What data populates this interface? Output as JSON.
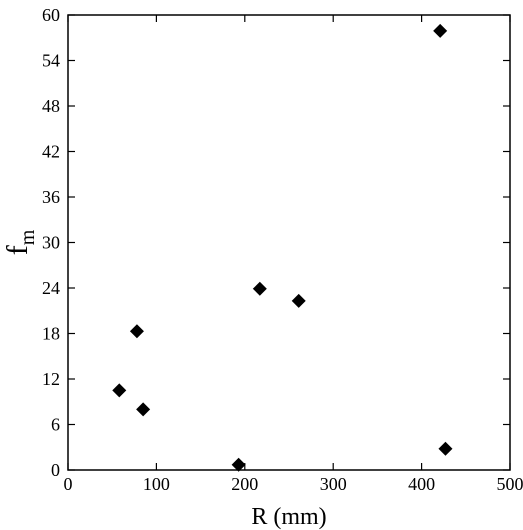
{
  "chart_data": {
    "type": "scatter",
    "title": "",
    "xlabel": "R (mm)",
    "ylabel_main": "f",
    "ylabel_sub": "m",
    "xlim": [
      0,
      500
    ],
    "ylim": [
      0,
      60
    ],
    "xticks": [
      0,
      100,
      200,
      300,
      400,
      500
    ],
    "yticks": [
      0,
      6,
      12,
      18,
      24,
      30,
      36,
      42,
      48,
      54,
      60
    ],
    "xtick_labels": [
      "0",
      "100",
      "200",
      "300",
      "400",
      "500"
    ],
    "ytick_labels": [
      "0",
      "6",
      "12",
      "18",
      "24",
      "30",
      "36",
      "42",
      "48",
      "54",
      "60"
    ],
    "grid": false,
    "marker": "diamond",
    "marker_color": "#000000",
    "series": [
      {
        "points": [
          {
            "x": 58,
            "y": 10.5
          },
          {
            "x": 78,
            "y": 18.3
          },
          {
            "x": 85,
            "y": 8.0
          },
          {
            "x": 193,
            "y": 0.7
          },
          {
            "x": 217,
            "y": 23.9
          },
          {
            "x": 261,
            "y": 22.3
          },
          {
            "x": 421,
            "y": 57.9
          },
          {
            "x": 427,
            "y": 2.8
          }
        ]
      }
    ]
  }
}
